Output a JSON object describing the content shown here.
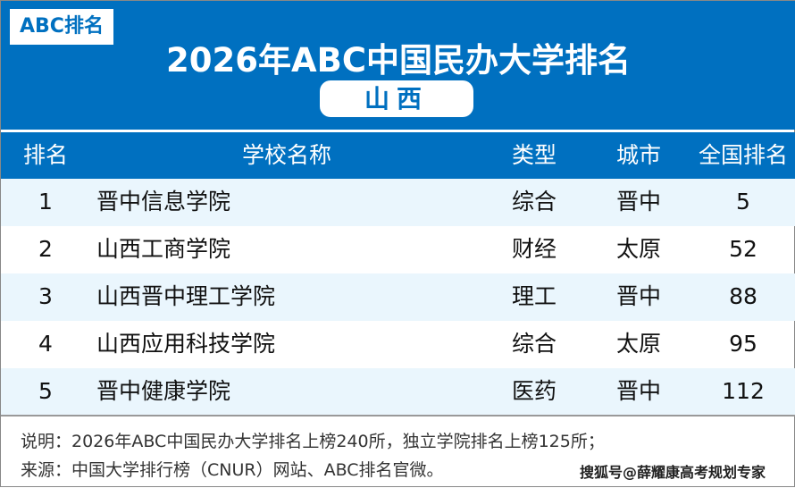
{
  "logo": "ABC排名",
  "title": "2026年ABC中国民办大学排名",
  "province": "山西",
  "columns": [
    "排名",
    "学校名称",
    "类型",
    "城市",
    "全国排名"
  ],
  "rows": [
    {
      "rank": "1",
      "name": "晋中信息学院",
      "type": "综合",
      "city": "晋中",
      "national": "5"
    },
    {
      "rank": "2",
      "name": "山西工商学院",
      "type": "财经",
      "city": "太原",
      "national": "52"
    },
    {
      "rank": "3",
      "name": "山西晋中理工学院",
      "type": "理工",
      "city": "晋中",
      "national": "88"
    },
    {
      "rank": "4",
      "name": "山西应用科技学院",
      "type": "综合",
      "city": "太原",
      "national": "95"
    },
    {
      "rank": "5",
      "name": "晋中健康学院",
      "type": "医药",
      "city": "晋中",
      "national": "112"
    }
  ],
  "footer": {
    "note": "说明：2026年ABC中国民办大学排名上榜240所，独立学院排名上榜125所；",
    "source": "来源：中国大学排行榜（CNUR）网站、ABC排名官微。"
  },
  "watermark": "搜狐号@薛耀康高考规划专家",
  "colors": {
    "primary": "#0070c0",
    "alt_row": "#eaf6fd"
  }
}
